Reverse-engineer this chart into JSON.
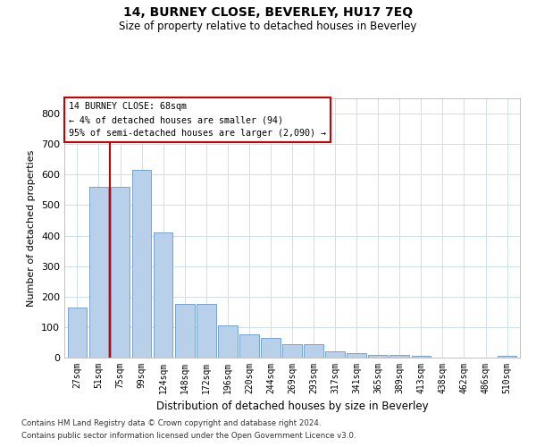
{
  "title": "14, BURNEY CLOSE, BEVERLEY, HU17 7EQ",
  "subtitle": "Size of property relative to detached houses in Beverley",
  "xlabel": "Distribution of detached houses by size in Beverley",
  "ylabel": "Number of detached properties",
  "footnote1": "Contains HM Land Registry data © Crown copyright and database right 2024.",
  "footnote2": "Contains public sector information licensed under the Open Government Licence v3.0.",
  "categories": [
    "27sqm",
    "51sqm",
    "75sqm",
    "99sqm",
    "124sqm",
    "148sqm",
    "172sqm",
    "196sqm",
    "220sqm",
    "244sqm",
    "269sqm",
    "293sqm",
    "317sqm",
    "341sqm",
    "365sqm",
    "389sqm",
    "413sqm",
    "438sqm",
    "462sqm",
    "486sqm",
    "510sqm"
  ],
  "values": [
    165,
    560,
    560,
    615,
    410,
    175,
    175,
    105,
    75,
    65,
    45,
    45,
    20,
    15,
    10,
    10,
    5,
    0,
    0,
    0,
    5
  ],
  "bar_color": "#b8d0ea",
  "bar_edge_color": "#6699cc",
  "grid_color": "#ccdded",
  "annotation_text_line1": "14 BURNEY CLOSE: 68sqm",
  "annotation_text_line2": "← 4% of detached houses are smaller (94)",
  "annotation_text_line3": "95% of semi-detached houses are larger (2,090) →",
  "annotation_box_color": "#ffffff",
  "annotation_box_edge": "#cc0000",
  "vline_color": "#cc0000",
  "ylim": [
    0,
    850
  ],
  "yticks": [
    0,
    100,
    200,
    300,
    400,
    500,
    600,
    700,
    800
  ]
}
